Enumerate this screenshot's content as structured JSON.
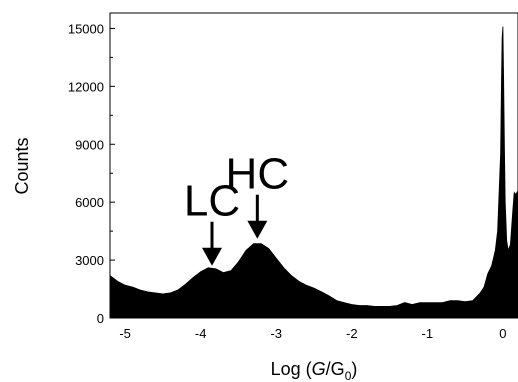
{
  "chart_data": {
    "type": "area",
    "title": "",
    "xlabel": {
      "prefix": "Log (",
      "G": "G",
      "slash": "/G",
      "sub": "0",
      "suffix": ")"
    },
    "ylabel": "Counts",
    "xlim": [
      -5.2,
      0.2
    ],
    "ylim": [
      0,
      15800
    ],
    "grid": false,
    "legend": "none",
    "x_ticks": [
      -5,
      -4,
      -3,
      -2,
      -1,
      0
    ],
    "x_tick_labels": [
      "-5",
      "-4",
      "-3",
      "-2",
      "-1",
      "0"
    ],
    "y_ticks": [
      0,
      3000,
      6000,
      9000,
      12000,
      15000
    ],
    "y_tick_labels": [
      "0",
      "3000",
      "6000",
      "9000",
      "12000",
      "15000"
    ],
    "fill_color": "#000000",
    "series": [
      {
        "x": [
          -5.2,
          -5.1,
          -5.0,
          -4.9,
          -4.8,
          -4.7,
          -4.6,
          -4.5,
          -4.4,
          -4.3,
          -4.2,
          -4.1,
          -4.0,
          -3.9,
          -3.8,
          -3.7,
          -3.6,
          -3.5,
          -3.4,
          -3.3,
          -3.2,
          -3.1,
          -3.0,
          -2.9,
          -2.8,
          -2.7,
          -2.6,
          -2.5,
          -2.4,
          -2.3,
          -2.2,
          -2.1,
          -2.0,
          -1.9,
          -1.8,
          -1.7,
          -1.6,
          -1.5,
          -1.4,
          -1.3,
          -1.2,
          -1.1,
          -1.0,
          -0.9,
          -0.8,
          -0.7,
          -0.6,
          -0.5,
          -0.4,
          -0.3,
          -0.25,
          -0.2,
          -0.15,
          -0.1,
          -0.07,
          -0.05,
          -0.03,
          -0.02,
          -0.01,
          0.0,
          0.01,
          0.02,
          0.03,
          0.05,
          0.07,
          0.1,
          0.13,
          0.15,
          0.17,
          0.2
        ],
        "y": [
          2200,
          1900,
          1700,
          1600,
          1450,
          1350,
          1300,
          1250,
          1300,
          1450,
          1750,
          2100,
          2400,
          2600,
          2550,
          2350,
          2450,
          2900,
          3500,
          3850,
          3850,
          3600,
          3100,
          2600,
          2200,
          1900,
          1700,
          1550,
          1350,
          1150,
          900,
          800,
          700,
          650,
          650,
          600,
          600,
          600,
          650,
          800,
          700,
          800,
          800,
          800,
          800,
          900,
          900,
          850,
          900,
          1300,
          1600,
          2300,
          2700,
          3500,
          4500,
          6500,
          8500,
          12000,
          14500,
          15100,
          12500,
          9000,
          6000,
          4000,
          3500,
          3800,
          5500,
          6500,
          6400,
          6600
        ]
      }
    ],
    "annotations": [
      {
        "text": "LC",
        "x": -3.85,
        "y": 2500
      },
      {
        "text": "HC",
        "x": -3.25,
        "y": 3900
      }
    ]
  }
}
